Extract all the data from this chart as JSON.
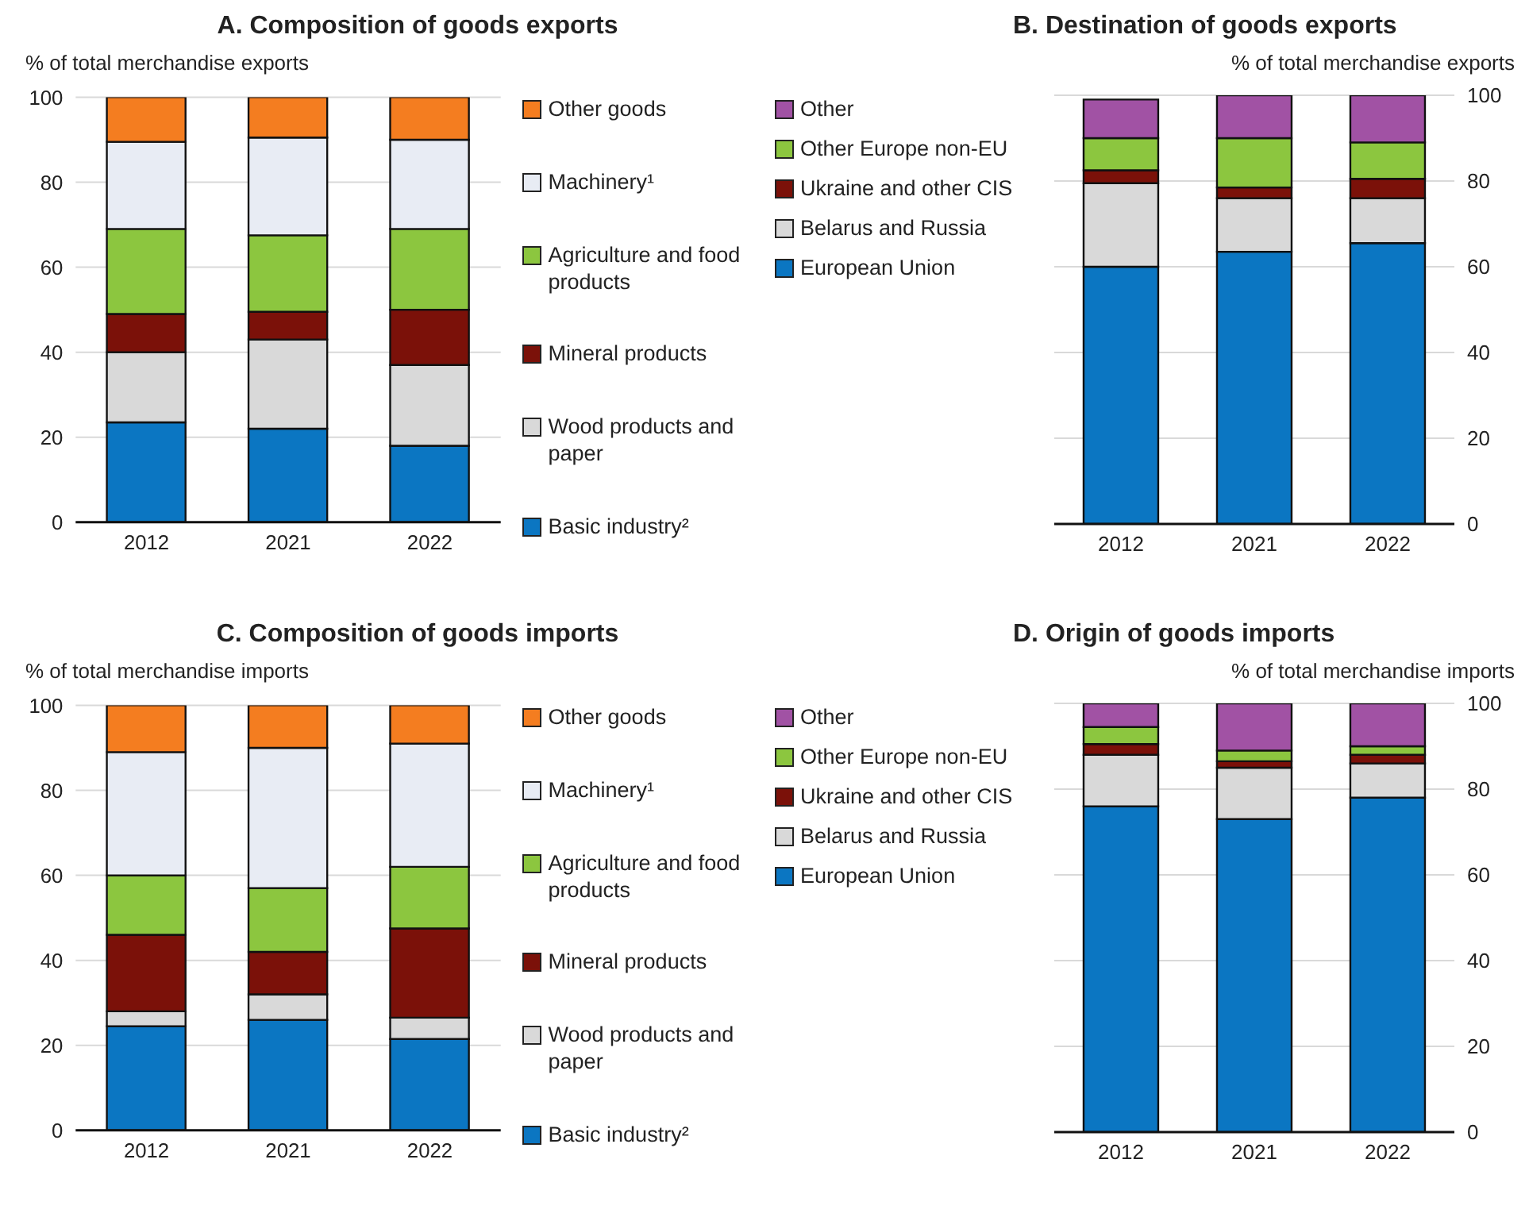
{
  "chart_data": [
    {
      "type": "bar",
      "title": "A. Composition of goods exports",
      "ylabel": "% of total merchandise exports",
      "categories": [
        "2012",
        "2021",
        "2022"
      ],
      "stacked": true,
      "ylim": [
        0,
        100
      ],
      "yticks": [
        0,
        20,
        40,
        60,
        80,
        100
      ],
      "grid": "y",
      "legend": "right",
      "series": [
        {
          "name": "Basic industry²",
          "color": "#0b76c2",
          "values": [
            23.5,
            22,
            18
          ]
        },
        {
          "name": "Wood products and paper",
          "color": "#d9d9d9",
          "values": [
            16.5,
            21,
            19
          ]
        },
        {
          "name": "Mineral products",
          "color": "#7b1109",
          "values": [
            9,
            6.5,
            13
          ]
        },
        {
          "name": "Agriculture and food products",
          "color": "#8cc63f",
          "values": [
            20,
            18,
            19
          ]
        },
        {
          "name": "Machinery¹",
          "color": "#e8ecf4",
          "values": [
            20.5,
            23,
            21
          ]
        },
        {
          "name": "Other goods",
          "color": "#f47d20",
          "values": [
            10.5,
            9.5,
            10
          ]
        }
      ]
    },
    {
      "type": "bar",
      "title": "B. Destination of goods exports",
      "ylabel": "% of total merchandise exports",
      "categories": [
        "2012",
        "2021",
        "2022"
      ],
      "stacked": true,
      "ylim": [
        0,
        100
      ],
      "yticks": [
        0,
        20,
        40,
        60,
        80,
        100
      ],
      "grid": "y",
      "legend": "left",
      "series": [
        {
          "name": "European Union",
          "color": "#0b76c2",
          "values": [
            60,
            63.5,
            65.5
          ]
        },
        {
          "name": "Belarus and Russia",
          "color": "#d9d9d9",
          "values": [
            19.5,
            12.5,
            10.5
          ]
        },
        {
          "name": "Ukraine and other CIS",
          "color": "#7b1109",
          "values": [
            3,
            2.5,
            4.5
          ]
        },
        {
          "name": "Other Europe non-EU",
          "color": "#8cc63f",
          "values": [
            7.5,
            11.5,
            8.5
          ]
        },
        {
          "name": "Other",
          "color": "#a152a4",
          "values": [
            9,
            10,
            11
          ]
        }
      ]
    },
    {
      "type": "bar",
      "title": "C. Composition of goods imports",
      "ylabel": "% of total merchandise imports",
      "categories": [
        "2012",
        "2021",
        "2022"
      ],
      "stacked": true,
      "ylim": [
        0,
        100
      ],
      "yticks": [
        0,
        20,
        40,
        60,
        80,
        100
      ],
      "grid": "y",
      "legend": "right",
      "series": [
        {
          "name": "Basic industry²",
          "color": "#0b76c2",
          "values": [
            24.5,
            26,
            21.5
          ]
        },
        {
          "name": "Wood products and paper",
          "color": "#d9d9d9",
          "values": [
            3.5,
            6,
            5
          ]
        },
        {
          "name": "Mineral products",
          "color": "#7b1109",
          "values": [
            18,
            10,
            21
          ]
        },
        {
          "name": "Agriculture and food products",
          "color": "#8cc63f",
          "values": [
            14,
            15,
            14.5
          ]
        },
        {
          "name": "Machinery¹",
          "color": "#e8ecf4",
          "values": [
            29,
            33,
            29
          ]
        },
        {
          "name": "Other goods",
          "color": "#f47d20",
          "values": [
            11,
            10,
            9
          ]
        }
      ]
    },
    {
      "type": "bar",
      "title": "D. Origin of goods imports",
      "ylabel": "% of total merchandise imports",
      "categories": [
        "2012",
        "2021",
        "2022"
      ],
      "stacked": true,
      "ylim": [
        0,
        100
      ],
      "yticks": [
        0,
        20,
        40,
        60,
        80,
        100
      ],
      "grid": "y",
      "legend": "left",
      "series": [
        {
          "name": "European Union",
          "color": "#0b76c2",
          "values": [
            76,
            73,
            78
          ]
        },
        {
          "name": "Belarus and Russia",
          "color": "#d9d9d9",
          "values": [
            12,
            12,
            8
          ]
        },
        {
          "name": "Ukraine and other CIS",
          "color": "#7b1109",
          "values": [
            2.5,
            1.5,
            2
          ]
        },
        {
          "name": "Other Europe non-EU",
          "color": "#8cc63f",
          "values": [
            4,
            2.5,
            2
          ]
        },
        {
          "name": "Other",
          "color": "#a152a4",
          "values": [
            5.5,
            11,
            10
          ]
        }
      ]
    }
  ]
}
